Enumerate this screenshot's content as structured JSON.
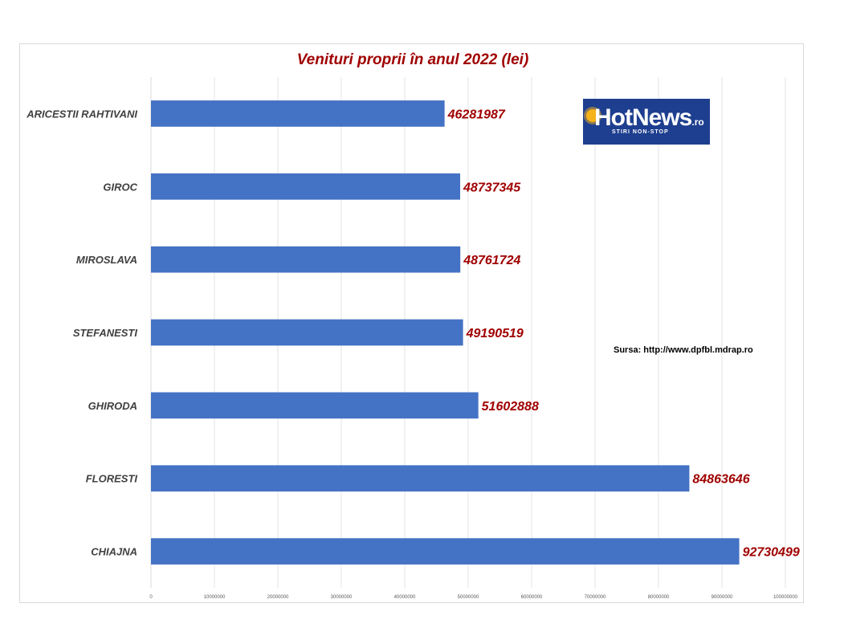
{
  "chart_data": {
    "type": "bar",
    "orientation": "horizontal",
    "title": "Venituri proprii în anul 2022  (lei)",
    "categories": [
      "ARICESTII RAHTIVANI",
      "GIROC",
      "MIROSLAVA",
      "STEFANESTI",
      "GHIRODA",
      "FLORESTI",
      "CHIAJNA"
    ],
    "values": [
      46281987,
      48737345,
      48761724,
      49190519,
      51602888,
      84863646,
      92730499
    ],
    "value_labels": [
      "46281987",
      "48737345",
      "48761724",
      "49190519",
      "51602888",
      "84863646",
      "92730499"
    ],
    "xticks": [
      "0",
      "10000000",
      "20000000",
      "30000000",
      "40000000",
      "50000000",
      "60000000",
      "70000000",
      "80000000",
      "90000000",
      "100000000"
    ],
    "xlim": [
      0,
      100000000
    ],
    "grid": true,
    "legend": "none",
    "bar_color": "#4472c4",
    "label_color": "#a00000",
    "category_color": "#404040"
  },
  "logo": {
    "brand": "HotNews",
    "tld": ".ro",
    "tagline": "STIRI NON-STOP"
  },
  "source_note": "Sursa: http://www.dpfbl.mdrap.ro"
}
